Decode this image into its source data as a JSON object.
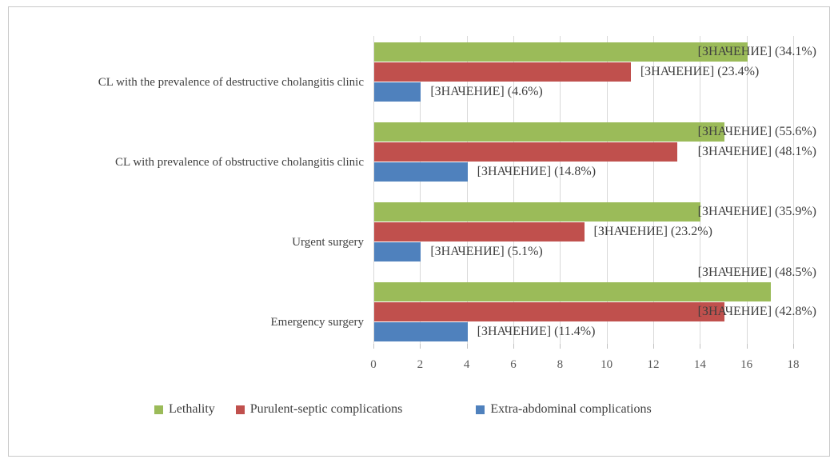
{
  "chart_data": {
    "type": "bar",
    "orientation": "horizontal",
    "title": "",
    "xlabel": "",
    "ylabel": "",
    "xlim": [
      0,
      18
    ],
    "xticks": [
      0,
      2,
      4,
      6,
      8,
      10,
      12,
      14,
      16,
      18
    ],
    "grid": true,
    "legend_position": "bottom",
    "value_placeholder_text": "[ЗНАЧЕНИЕ]",
    "categories": [
      "CL with the prevalence of destructive cholangitis clinic",
      "CL with prevalence of obstructive cholangitis clinic",
      "Urgent surgery",
      "Emergency surgery"
    ],
    "series": [
      {
        "name": "Lethality",
        "color": "#9BBB59",
        "values": [
          16,
          15,
          14,
          17
        ],
        "labels": [
          "[ЗНАЧЕНИЕ] (34.1%)",
          "[ЗНАЧЕНИЕ] (55.6%)",
          "[ЗНАЧЕНИЕ] (35.9%)",
          "[ЗНАЧЕНИЕ] (48.5%)"
        ],
        "label_placements": [
          "right",
          "right",
          "right",
          "above-right"
        ]
      },
      {
        "name": "Purulent-septic complications",
        "color": "#C0504D",
        "values": [
          11,
          13,
          9,
          15
        ],
        "labels": [
          "[ЗНАЧЕНИЕ] (23.4%)",
          "[ЗНАЧЕНИЕ] (48.1%)",
          "[ЗНАЧЕНИЕ] (23.2%)",
          "[ЗНАЧЕНИЕ] (42.8%)"
        ],
        "label_placements": [
          "after",
          "right",
          "after",
          "right"
        ]
      },
      {
        "name": "Extra-abdominal complications",
        "color": "#4F81BD",
        "values": [
          2,
          4,
          2,
          4
        ],
        "labels": [
          "[ЗНАЧЕНИЕ] (4.6%)",
          "[ЗНАЧЕНИЕ] (14.8%)",
          "[ЗНАЧЕНИЕ] (5.1%)",
          "[ЗНАЧЕНИЕ] (11.4%)"
        ],
        "label_placements": [
          "after",
          "after",
          "after",
          "after"
        ]
      }
    ],
    "colors": {
      "gridline": "#D9D9D9",
      "tick_text": "#595959",
      "text": "#3F3F3F",
      "frame_border": "#C9C9C9"
    }
  }
}
